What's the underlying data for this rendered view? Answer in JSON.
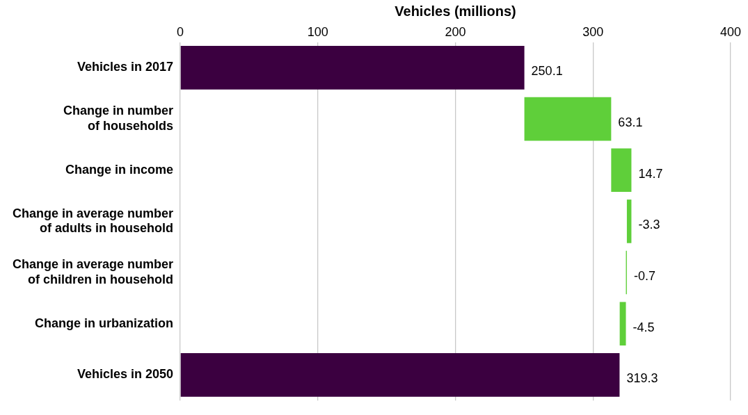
{
  "chart_data": {
    "type": "bar",
    "orientation": "horizontal",
    "xlabel": "Vehicles (millions)",
    "categories": [
      "Vehicles in 2017",
      "Change in number of households",
      "Change in income",
      "Change in average number of adults in household",
      "Change in average number of children in household",
      "Change in urbanization",
      "Vehicles in 2050"
    ],
    "values": [
      250.1,
      63.1,
      14.7,
      -3.3,
      -0.7,
      -4.5,
      319.3
    ],
    "base": [
      0,
      250.1,
      313.2,
      327.9,
      324.6,
      323.9,
      0
    ],
    "colors": [
      "#3b0040",
      "#5fcf3a",
      "#5fcf3a",
      "#5fcf3a",
      "#5fcf3a",
      "#5fcf3a",
      "#3b0040"
    ],
    "xlim": [
      0,
      400
    ],
    "xticks": [
      0,
      100,
      200,
      300,
      400
    ],
    "grid": "x",
    "data_labels": true,
    "legend": false
  }
}
